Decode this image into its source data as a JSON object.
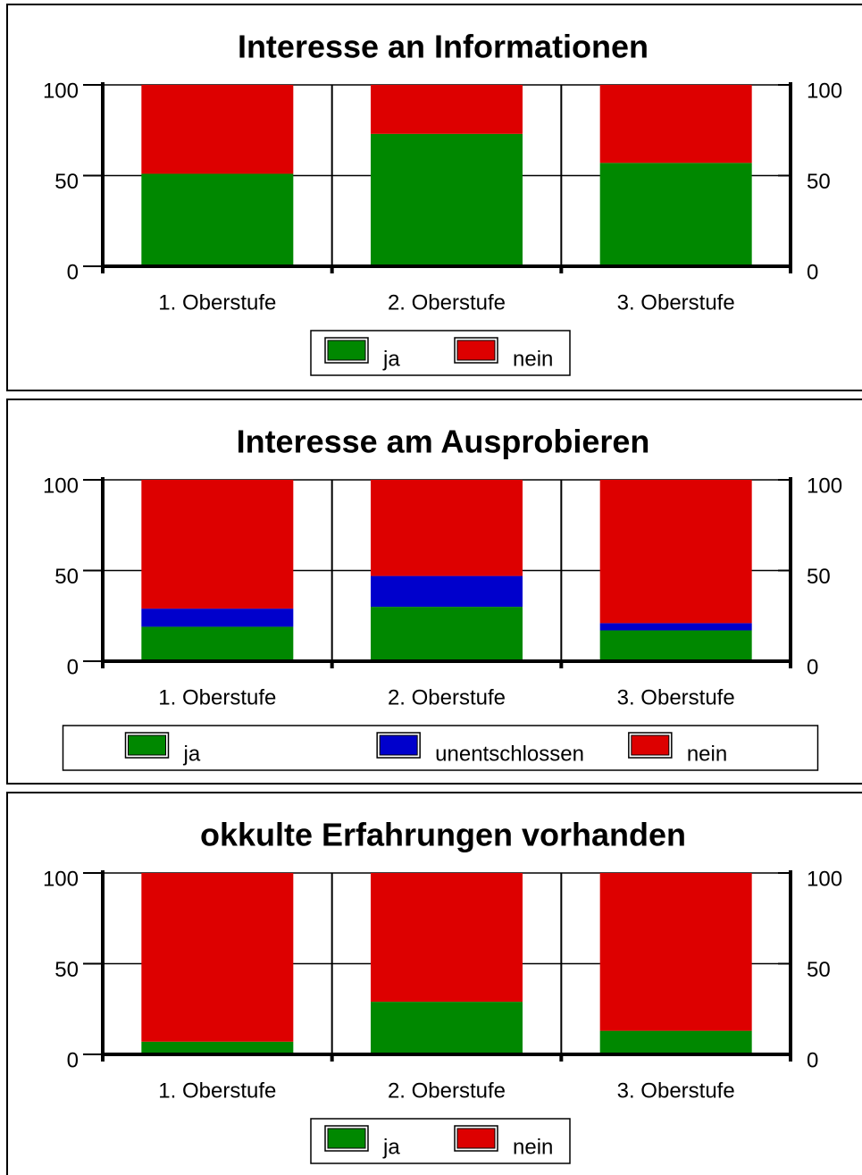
{
  "chart_data": [
    {
      "type": "bar",
      "stacked": true,
      "title": "Interesse an Informationen",
      "categories": [
        "1. Oberstufe",
        "2. Oberstufe",
        "3. Oberstufe"
      ],
      "series": [
        {
          "name": "ja",
          "color": "#008800",
          "values": [
            51,
            73,
            57
          ]
        },
        {
          "name": "nein",
          "color": "#dd0000",
          "values": [
            49,
            27,
            43
          ]
        }
      ],
      "ylim": [
        0,
        100
      ],
      "yticks": [
        0,
        50,
        100
      ],
      "y2lim": [
        0,
        100
      ],
      "y2ticks": [
        0,
        50,
        100
      ],
      "grid": true
    },
    {
      "type": "bar",
      "stacked": true,
      "title": "Interesse am Ausprobieren",
      "categories": [
        "1. Oberstufe",
        "2. Oberstufe",
        "3. Oberstufe"
      ],
      "series": [
        {
          "name": "ja",
          "color": "#008800",
          "values": [
            19,
            30,
            17
          ]
        },
        {
          "name": "unentschlossen",
          "color": "#0000cc",
          "values": [
            10,
            17,
            4
          ]
        },
        {
          "name": "nein",
          "color": "#dd0000",
          "values": [
            71,
            53,
            79
          ]
        }
      ],
      "ylim": [
        0,
        100
      ],
      "yticks": [
        0,
        50,
        100
      ],
      "y2lim": [
        0,
        100
      ],
      "y2ticks": [
        0,
        50,
        100
      ],
      "grid": true
    },
    {
      "type": "bar",
      "stacked": true,
      "title": "okkulte Erfahrungen vorhanden",
      "categories": [
        "1. Oberstufe",
        "2. Oberstufe",
        "3. Oberstufe"
      ],
      "series": [
        {
          "name": "ja",
          "color": "#008800",
          "values": [
            7,
            29,
            13
          ]
        },
        {
          "name": "nein",
          "color": "#dd0000",
          "values": [
            93,
            71,
            87
          ]
        }
      ],
      "ylim": [
        0,
        100
      ],
      "yticks": [
        0,
        50,
        100
      ],
      "y2lim": [
        0,
        100
      ],
      "y2ticks": [
        0,
        50,
        100
      ],
      "grid": true
    }
  ]
}
